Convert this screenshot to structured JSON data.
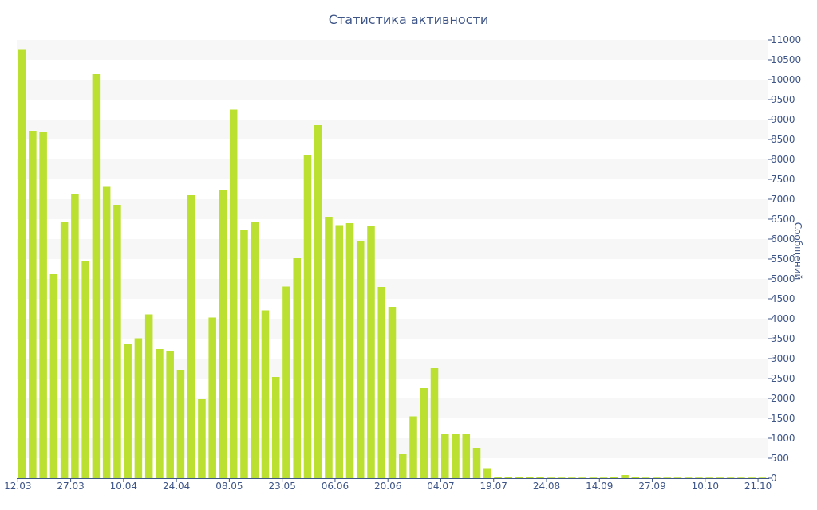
{
  "chart_data": {
    "type": "bar",
    "title": "Статистика активности",
    "xlabel": "",
    "ylabel": "Сообщений",
    "ylim": [
      0,
      11000
    ],
    "y_ticks": [
      0,
      500,
      1000,
      1500,
      2000,
      2500,
      3000,
      3500,
      4000,
      4500,
      5000,
      5500,
      6000,
      6500,
      7000,
      7500,
      8000,
      8500,
      9000,
      9500,
      10000,
      10500,
      11000
    ],
    "x_tick_labels": [
      "12.03",
      "27.03",
      "10.04",
      "24.04",
      "08.05",
      "23.05",
      "06.06",
      "20.06",
      "04.07",
      "19.07",
      "24.08",
      "14.09",
      "27.09",
      "10.10",
      "21.10"
    ],
    "x_tick_index": [
      0,
      5,
      10,
      15,
      20,
      25,
      30,
      35,
      40,
      45,
      50,
      55,
      60,
      65,
      70
    ],
    "values": [
      10750,
      8720,
      8680,
      5120,
      6420,
      7120,
      5460,
      10140,
      7310,
      6860,
      3360,
      3510,
      4110,
      3240,
      3180,
      2720,
      7100,
      1980,
      4030,
      7230,
      9250,
      6240,
      6430,
      4210,
      2540,
      4810,
      5520,
      8100,
      8860,
      6560,
      6350,
      6400,
      5960,
      6320,
      4800,
      4300,
      600,
      1550,
      2260,
      2760,
      1110,
      1120,
      1110,
      760,
      250,
      40,
      30,
      20,
      20,
      20,
      15,
      15,
      15,
      15,
      15,
      15,
      20,
      80,
      20,
      15,
      15,
      15,
      15,
      15,
      15,
      15,
      15,
      15,
      15,
      15,
      15
    ],
    "bar_color": "#bbe032",
    "band_color": "#f7f7f7",
    "axis_color": "#3e5588",
    "grid": "alternating-bands",
    "y_axis_position": "right"
  }
}
